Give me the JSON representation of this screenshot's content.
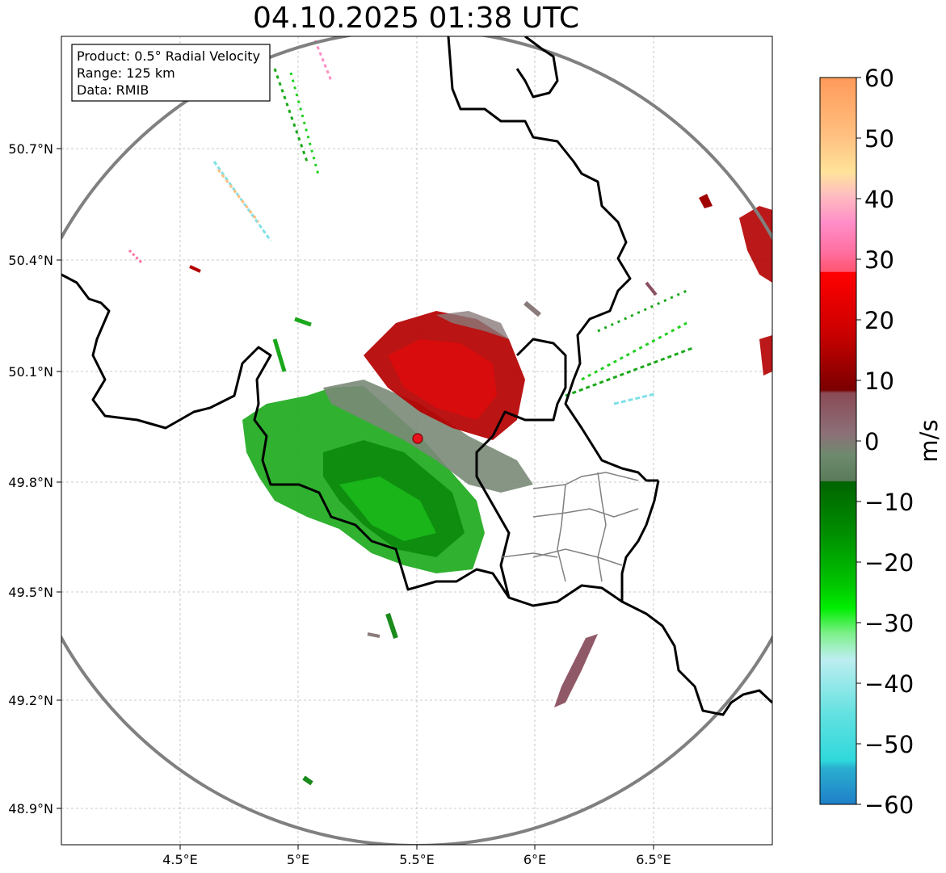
{
  "title": "04.10.2025 01:38 UTC",
  "info_box": {
    "product": "Product: 0.5° Radial Velocity",
    "range": "Range: 125 km",
    "data": "Data: RMIB"
  },
  "axes": {
    "x_ticks": [
      "4.5°E",
      "5°E",
      "5.5°E",
      "6°E",
      "6.5°E"
    ],
    "y_ticks": [
      "50.7°N",
      "50.4°N",
      "50.1°N",
      "49.8°N",
      "49.5°N",
      "49.2°N",
      "48.9°N"
    ]
  },
  "colorbar": {
    "label": "m/s",
    "ticks": [
      "60",
      "50",
      "40",
      "30",
      "20",
      "10",
      "0",
      "−10",
      "−20",
      "−30",
      "−40",
      "−50",
      "−60"
    ],
    "range": [
      -60,
      60
    ]
  },
  "colors": {
    "range_ring": "#808080",
    "border": "#000000",
    "province_border": "#808080",
    "radar_site": "#e8141e"
  }
}
